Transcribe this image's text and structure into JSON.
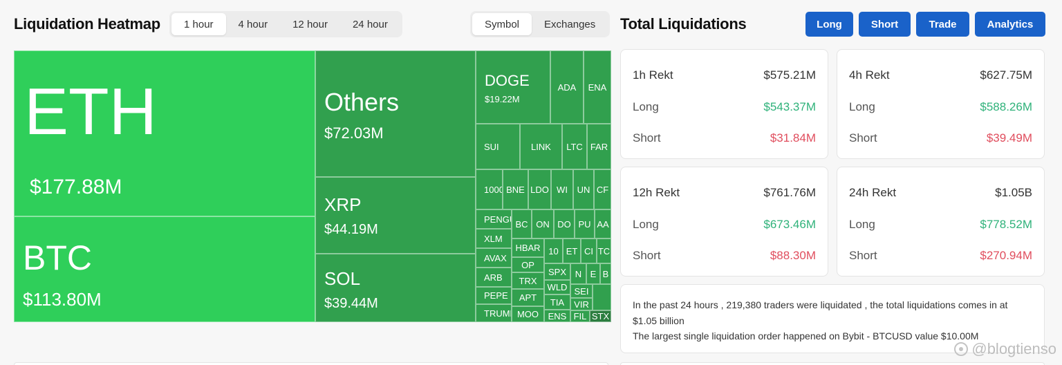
{
  "heatmap": {
    "title": "Liquidation Heatmap",
    "time_tabs": [
      "1 hour",
      "4 hour",
      "12 hour",
      "24 hour"
    ],
    "view_tabs": [
      "Symbol",
      "Exchanges"
    ],
    "cells": {
      "eth": {
        "label": "ETH",
        "value": "$177.88M"
      },
      "btc": {
        "label": "BTC",
        "value": "$113.80M"
      },
      "others": {
        "label": "Others",
        "value": "$72.03M"
      },
      "xrp": {
        "label": "XRP",
        "value": "$44.19M"
      },
      "sol": {
        "label": "SOL",
        "value": "$39.44M"
      },
      "doge": {
        "label": "DOGE",
        "value": "$19.22M"
      },
      "small": [
        "ADA",
        "ENA",
        "SUI",
        "LINK",
        "LTC",
        "FAR",
        "1000",
        "BNE",
        "LDO",
        "WI",
        "UN",
        "CF",
        "PENGU",
        "BC",
        "ON",
        "DO",
        "PU",
        "AA",
        "XLM",
        "HBAR",
        "10",
        "ET",
        "CI",
        "TC",
        "AVAX",
        "OP",
        "SPX",
        "N",
        "E",
        "B",
        "ARB",
        "TRX",
        "WLD",
        "SEI",
        "PEPE",
        "APT",
        "TIA",
        "VIR",
        "TRUMP",
        "MOO",
        "ENS",
        "FIL",
        "STX"
      ]
    }
  },
  "totals": {
    "title": "Total Liquidations",
    "buttons": [
      "Long",
      "Short",
      "Trade",
      "Analytics"
    ],
    "cards": [
      {
        "period": "1h Rekt",
        "total": "$575.21M",
        "long_label": "Long",
        "long": "$543.37M",
        "short_label": "Short",
        "short": "$31.84M"
      },
      {
        "period": "4h Rekt",
        "total": "$627.75M",
        "long_label": "Long",
        "long": "$588.26M",
        "short_label": "Short",
        "short": "$39.49M"
      },
      {
        "period": "12h Rekt",
        "total": "$761.76M",
        "long_label": "Long",
        "long": "$673.46M",
        "short_label": "Short",
        "short": "$88.30M"
      },
      {
        "period": "24h Rekt",
        "total": "$1.05B",
        "long_label": "Long",
        "long": "$778.52M",
        "short_label": "Short",
        "short": "$270.94M"
      }
    ],
    "summary_line1": "In the past 24 hours , 219,380 traders were liquidated , the total liquidations comes in at $1.05 billion",
    "summary_line2": "The largest single liquidation order happened on Bybit - BTCUSD value $10.00M"
  },
  "watermark": "@blogtienso",
  "colors": {
    "heat_big": "#2fcf5a",
    "heat_small": "#31a04e",
    "accent_button": "#1a62c9",
    "long": "#2fb27a",
    "short": "#e04d5d"
  }
}
